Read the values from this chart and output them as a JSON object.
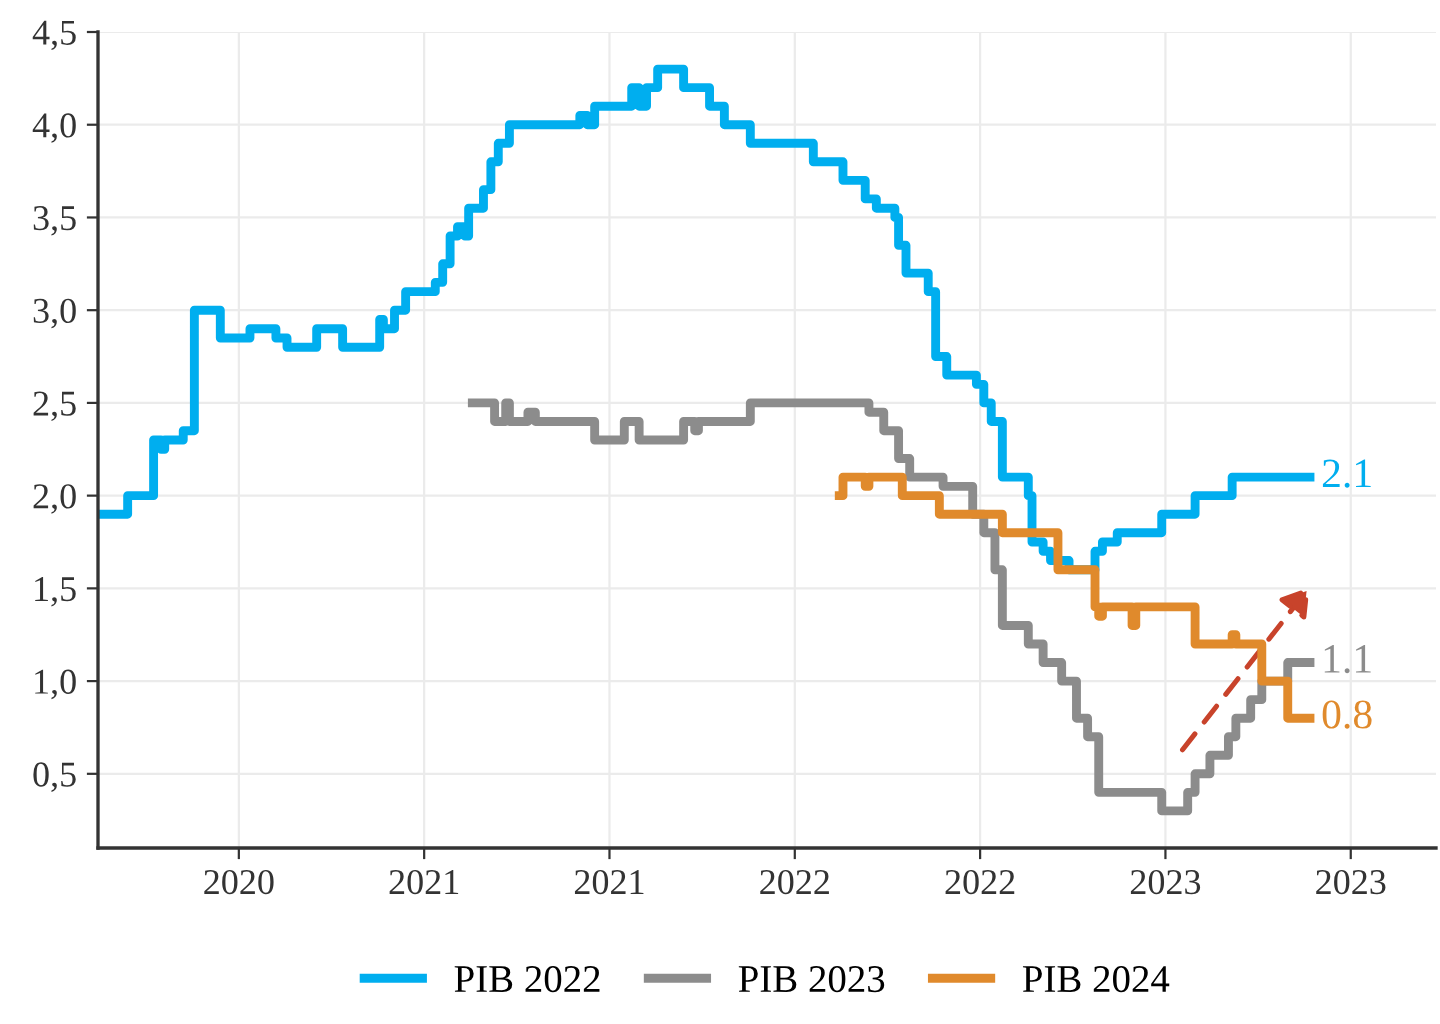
{
  "chart_data": {
    "type": "step",
    "xlim": [
      2019.62,
      2023.23
    ],
    "xticks": [
      {
        "value": 2020,
        "label": "2020"
      },
      {
        "value": 2020.5,
        "label": "2021"
      },
      {
        "value": 2021,
        "label": "2021"
      },
      {
        "value": 2021.5,
        "label": "2022"
      },
      {
        "value": 2022,
        "label": "2022"
      },
      {
        "value": 2022.5,
        "label": "2023"
      },
      {
        "value": 2023,
        "label": "2023"
      }
    ],
    "ylim": [
      0.1,
      4.5
    ],
    "yticks": [
      {
        "value": 0.5,
        "label": "0,5"
      },
      {
        "value": 1.0,
        "label": "1,0"
      },
      {
        "value": 1.5,
        "label": "1,5"
      },
      {
        "value": 2.0,
        "label": "2,0"
      },
      {
        "value": 2.5,
        "label": "2,5"
      },
      {
        "value": 3.0,
        "label": "3,0"
      },
      {
        "value": 3.5,
        "label": "3,5"
      },
      {
        "value": 4.0,
        "label": "4,0"
      },
      {
        "value": 4.5,
        "label": "4,5"
      }
    ],
    "grid": true,
    "legend": "bottom",
    "series": [
      {
        "name": "PIB 2022",
        "color": "#00aeef",
        "x": [
          2019.63,
          2019.7,
          2019.77,
          2019.79,
          2019.8,
          2019.85,
          2019.88,
          2019.95,
          2020.03,
          2020.1,
          2020.13,
          2020.21,
          2020.28,
          2020.38,
          2020.39,
          2020.42,
          2020.45,
          2020.53,
          2020.55,
          2020.57,
          2020.59,
          2020.61,
          2020.62,
          2020.66,
          2020.68,
          2020.7,
          2020.73,
          2020.92,
          2020.94,
          2020.96,
          2021.06,
          2021.08,
          2021.1,
          2021.13,
          2021.2,
          2021.27,
          2021.31,
          2021.38,
          2021.55,
          2021.63,
          2021.69,
          2021.72,
          2021.77,
          2021.78,
          2021.8,
          2021.86,
          2021.88,
          2021.91,
          2021.99,
          2022.01,
          2022.03,
          2022.06,
          2022.13,
          2022.14,
          2022.17,
          2022.19,
          2022.24,
          2022.31,
          2022.33,
          2022.37,
          2022.49,
          2022.58,
          2022.68,
          2022.89
        ],
        "values": [
          1.9,
          2.0,
          2.3,
          2.25,
          2.3,
          2.35,
          3.0,
          2.85,
          2.9,
          2.85,
          2.8,
          2.9,
          2.8,
          2.95,
          2.9,
          3.0,
          3.1,
          3.15,
          3.25,
          3.4,
          3.45,
          3.4,
          3.55,
          3.65,
          3.8,
          3.9,
          4.0,
          4.05,
          4.0,
          4.1,
          4.2,
          4.1,
          4.2,
          4.3,
          4.2,
          4.1,
          4.0,
          3.9,
          3.8,
          3.7,
          3.6,
          3.55,
          3.5,
          3.35,
          3.2,
          3.1,
          2.75,
          2.65,
          2.6,
          2.5,
          2.4,
          2.1,
          2.0,
          1.75,
          1.7,
          1.65,
          1.6,
          1.7,
          1.75,
          1.8,
          1.9,
          2.0,
          2.1,
          2.1
        ],
        "value_labels": [
          null,
          null,
          null,
          null,
          null,
          null,
          null,
          null,
          null,
          null,
          null,
          null,
          null,
          null,
          null,
          null,
          null,
          null,
          null,
          null,
          null,
          null,
          null,
          null,
          null,
          null,
          null,
          null,
          null,
          null,
          null,
          null,
          null,
          null,
          null,
          null,
          null,
          null,
          null,
          null,
          null,
          null,
          null,
          null,
          null,
          null,
          null,
          null,
          null,
          null,
          null,
          null,
          null,
          null,
          null,
          null,
          null,
          null,
          null,
          null,
          null,
          null,
          null,
          "2.1"
        ]
      },
      {
        "name": "PIB 2023",
        "color": "#8c8c8c",
        "x": [
          2020.63,
          2020.69,
          2020.72,
          2020.73,
          2020.78,
          2020.8,
          2020.96,
          2021.04,
          2021.08,
          2021.2,
          2021.23,
          2021.24,
          2021.38,
          2021.7,
          2021.74,
          2021.78,
          2021.81,
          2021.9,
          2021.98,
          2022.01,
          2022.04,
          2022.06,
          2022.13,
          2022.17,
          2022.22,
          2022.26,
          2022.29,
          2022.32,
          2022.49,
          2022.56,
          2022.58,
          2022.62,
          2022.67,
          2022.69,
          2022.73,
          2022.76,
          2022.83,
          2022.89
        ],
        "values": [
          2.5,
          2.4,
          2.5,
          2.4,
          2.45,
          2.4,
          2.3,
          2.4,
          2.3,
          2.4,
          2.35,
          2.4,
          2.5,
          2.45,
          2.35,
          2.2,
          2.1,
          2.05,
          1.9,
          1.8,
          1.6,
          1.3,
          1.2,
          1.1,
          1.0,
          0.8,
          0.7,
          0.4,
          0.3,
          0.4,
          0.5,
          0.6,
          0.7,
          0.8,
          0.9,
          1.0,
          1.1,
          1.1
        ],
        "value_labels": [
          null,
          null,
          null,
          null,
          null,
          null,
          null,
          null,
          null,
          null,
          null,
          null,
          null,
          null,
          null,
          null,
          null,
          null,
          null,
          null,
          null,
          null,
          null,
          null,
          null,
          null,
          null,
          null,
          null,
          null,
          null,
          null,
          null,
          null,
          null,
          null,
          null,
          "1.1"
        ]
      },
      {
        "name": "PIB 2024",
        "color": "#e08a2c",
        "x": [
          2021.62,
          2021.63,
          2021.69,
          2021.7,
          2021.79,
          2021.89,
          2022.06,
          2022.21,
          2022.31,
          2022.32,
          2022.33,
          2022.41,
          2022.42,
          2022.58,
          2022.68,
          2022.69,
          2022.76,
          2022.83,
          2022.89
        ],
        "values": [
          2.0,
          2.1,
          2.05,
          2.1,
          2.0,
          1.9,
          1.8,
          1.6,
          1.4,
          1.35,
          1.4,
          1.3,
          1.4,
          1.2,
          1.25,
          1.2,
          1.0,
          0.8,
          0.8
        ],
        "value_labels": [
          null,
          null,
          null,
          null,
          null,
          null,
          null,
          null,
          null,
          null,
          null,
          null,
          null,
          null,
          null,
          null,
          null,
          null,
          "0.8"
        ]
      }
    ]
  }
}
